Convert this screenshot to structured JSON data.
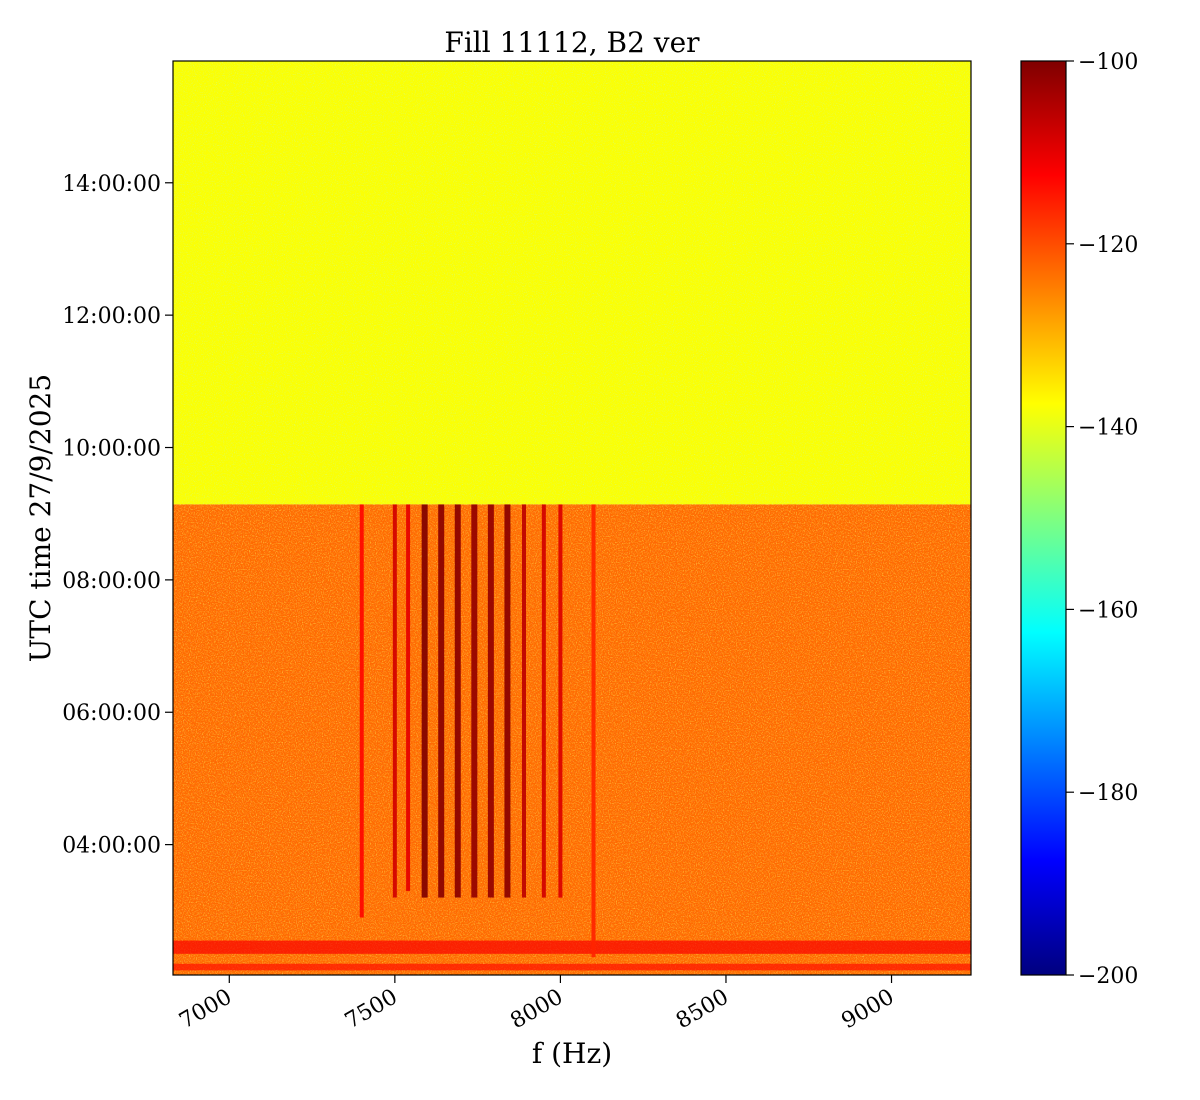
{
  "chart_data": {
    "type": "heatmap",
    "title": "Fill 11112, B2 ver",
    "xlabel": "f (Hz)",
    "ylabel": "UTC time 27/9/2025",
    "xlim": [
      6830,
      9240
    ],
    "ylim_hours": [
      2.03,
      15.84
    ],
    "x_ticks": [
      {
        "value": 7000,
        "label": "7000"
      },
      {
        "value": 7500,
        "label": "7500"
      },
      {
        "value": 8000,
        "label": "8000"
      },
      {
        "value": 8500,
        "label": "8500"
      },
      {
        "value": 9000,
        "label": "9000"
      }
    ],
    "y_ticks": [
      {
        "value": 4,
        "label": "04:00:00"
      },
      {
        "value": 6,
        "label": "06:00:00"
      },
      {
        "value": 8,
        "label": "08:00:00"
      },
      {
        "value": 10,
        "label": "10:00:00"
      },
      {
        "value": 12,
        "label": "12:00:00"
      },
      {
        "value": 14,
        "label": "14:00:00"
      }
    ],
    "colorbar": {
      "colormap": "jet",
      "range": [
        -200,
        -100
      ],
      "ticks": [
        {
          "value": -100,
          "label": "−100"
        },
        {
          "value": -120,
          "label": "−120"
        },
        {
          "value": -140,
          "label": "−140"
        },
        {
          "value": -160,
          "label": "−160"
        },
        {
          "value": -180,
          "label": "−180"
        },
        {
          "value": -200,
          "label": "−200"
        }
      ]
    },
    "regions": [
      {
        "t_start": 9.14,
        "t_end": 15.84,
        "level": -138
      },
      {
        "t_start": 2.03,
        "t_end": 9.14,
        "level": -123
      }
    ],
    "spectral_lines": [
      {
        "f": 7400,
        "t_start": 2.9,
        "t_end": 9.14,
        "level": -113
      },
      {
        "f": 7500,
        "t_start": 3.2,
        "t_end": 9.14,
        "level": -108
      },
      {
        "f": 7540,
        "t_start": 3.3,
        "t_end": 9.14,
        "level": -110
      },
      {
        "f": 7590,
        "t_start": 3.2,
        "t_end": 9.14,
        "level": -100
      },
      {
        "f": 7640,
        "t_start": 3.2,
        "t_end": 9.14,
        "level": -101
      },
      {
        "f": 7690,
        "t_start": 3.2,
        "t_end": 9.14,
        "level": -101
      },
      {
        "f": 7740,
        "t_start": 3.2,
        "t_end": 9.14,
        "level": -102
      },
      {
        "f": 7790,
        "t_start": 3.2,
        "t_end": 9.14,
        "level": -102
      },
      {
        "f": 7840,
        "t_start": 3.2,
        "t_end": 9.14,
        "level": -101
      },
      {
        "f": 7890,
        "t_start": 3.2,
        "t_end": 9.14,
        "level": -106
      },
      {
        "f": 7950,
        "t_start": 3.2,
        "t_end": 9.14,
        "level": -108
      },
      {
        "f": 8000,
        "t_start": 3.2,
        "t_end": 9.14,
        "level": -109
      },
      {
        "f": 8100,
        "t_start": 2.3,
        "t_end": 9.14,
        "level": -116
      }
    ],
    "bands": [
      {
        "t_start": 2.35,
        "t_end": 2.55,
        "level": -112
      },
      {
        "t_start": 2.1,
        "t_end": 2.2,
        "level": -114
      }
    ]
  }
}
